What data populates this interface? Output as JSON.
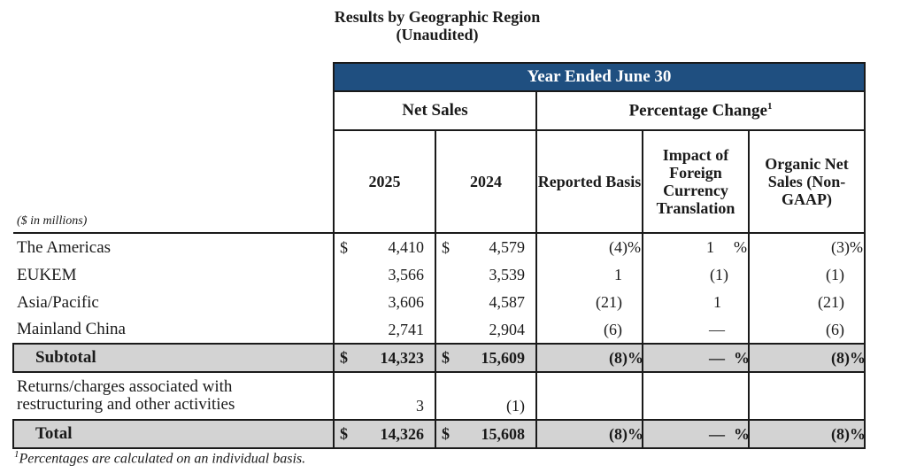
{
  "title": "Results by Geographic Region",
  "subtitle": "(Unaudited)",
  "banner": "Year Ended June 30",
  "groups": {
    "net_sales": "Net Sales",
    "percentage_change": "Percentage Change",
    "percentage_change_note": "1"
  },
  "units_label": "($ in millions)",
  "columns": {
    "y2025": "2025",
    "y2024": "2024",
    "reported": "Reported Basis",
    "fx": "Impact of Foreign Currency Translation",
    "organic": "Organic Net Sales (Non-GAAP)"
  },
  "currency_symbol": "$",
  "rows": [
    {
      "label": "The Americas",
      "cur": "$",
      "v2025": "4,410",
      "v2024": "4,579",
      "reported": "(4)",
      "reported_pct": "%",
      "fx": "1",
      "fx_pct": "%",
      "organic": "(3)",
      "organic_pct": "%"
    },
    {
      "label": "EUKEM",
      "cur": "",
      "v2025": "3,566",
      "v2024": "3,539",
      "reported": "1",
      "reported_pct": "",
      "fx": "(1)",
      "fx_pct": "",
      "organic": "(1)",
      "organic_pct": ""
    },
    {
      "label": "Asia/Pacific",
      "cur": "",
      "v2025": "3,606",
      "v2024": "4,587",
      "reported": "(21)",
      "reported_pct": "",
      "fx": "1",
      "fx_pct": "",
      "organic": "(21)",
      "organic_pct": ""
    },
    {
      "label": "Mainland China",
      "cur": "",
      "v2025": "2,741",
      "v2024": "2,904",
      "reported": "(6)",
      "reported_pct": "",
      "fx": "—",
      "fx_pct": "",
      "organic": "(6)",
      "organic_pct": ""
    }
  ],
  "subtotal": {
    "label": "Subtotal",
    "cur": "$",
    "v2025": "14,323",
    "v2024": "15,609",
    "reported": "(8)",
    "reported_pct": "%",
    "fx": "—",
    "fx_pct": "%",
    "organic": "(8)",
    "organic_pct": "%"
  },
  "returns": {
    "label": "Returns/charges associated with restructuring and other activities",
    "v2025": "3",
    "v2024": "(1)"
  },
  "total": {
    "label": "Total",
    "cur": "$",
    "v2025": "14,326",
    "v2024": "15,608",
    "reported": "(8)",
    "reported_pct": "%",
    "fx": "—",
    "fx_pct": "%",
    "organic": "(8)",
    "organic_pct": "%"
  },
  "footnote": {
    "mark": "1",
    "text": "Percentages are calculated on an individual basis."
  }
}
